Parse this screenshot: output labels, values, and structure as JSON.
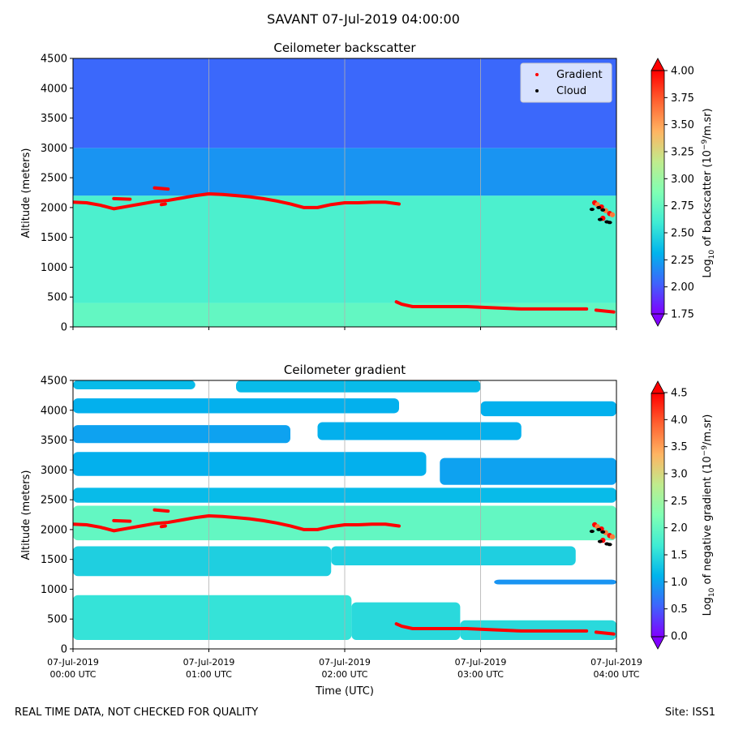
{
  "suptitle": "SAVANT 07-Jul-2019 04:00:00",
  "footer": {
    "quality_note": "REAL TIME DATA, NOT CHECKED FOR QUALITY",
    "site": "Site: ISS1"
  },
  "palette": {
    "rainbow": [
      "#8000ff",
      "#3f63fc",
      "#00b4ec",
      "#3fecd4",
      "#80ffb4",
      "#c0eb8d",
      "#ffb462",
      "#ff6231",
      "#ff0000"
    ],
    "gradient_marker": "#ff0000",
    "cloud_marker": "#000000"
  },
  "chart_data": [
    {
      "type": "heatmap",
      "title": "Ceilometer backscatter",
      "ylabel": "Altitude (meters)",
      "ylim": [
        0,
        4500
      ],
      "yticks": [
        "0",
        "500",
        "1000",
        "1500",
        "2000",
        "2500",
        "3000",
        "3500",
        "4000",
        "4500"
      ],
      "x_hours": [
        0,
        4
      ],
      "xticks_hours": [
        0,
        1,
        2,
        3,
        4
      ],
      "grid": "vertical",
      "legend": {
        "position": "top-right",
        "entries": [
          {
            "label": "Gradient",
            "color": "#ff0000"
          },
          {
            "label": "Cloud",
            "color": "#000000"
          }
        ]
      },
      "colorbar": {
        "label": "Log10 of backscatter (10^-9/m.sr)",
        "min": 1.75,
        "max": 4.0,
        "ticks": [
          "1.75",
          "2.00",
          "2.25",
          "2.50",
          "2.75",
          "3.00",
          "3.25",
          "3.50",
          "3.75",
          "4.00"
        ]
      },
      "field_layers": [
        {
          "from": 0,
          "to": 400,
          "value": 2.75
        },
        {
          "from": 400,
          "to": 2200,
          "value": 2.65
        },
        {
          "from": 2200,
          "to": 3000,
          "value": 2.2
        },
        {
          "from": 3000,
          "to": 4500,
          "value": 2.05
        }
      ]
    },
    {
      "type": "heatmap",
      "title": "Ceilometer gradient",
      "ylabel": "Altitude (meters)",
      "xlabel": "Time (UTC)",
      "ylim": [
        0,
        4500
      ],
      "yticks": [
        "0",
        "500",
        "1000",
        "1500",
        "2000",
        "2500",
        "3000",
        "3500",
        "4000",
        "4500"
      ],
      "x_hours": [
        0,
        4
      ],
      "xticks_hours": [
        0,
        1,
        2,
        3,
        4
      ],
      "xtick_labels": [
        {
          "date": "07-Jul-2019",
          "time": "00:00 UTC"
        },
        {
          "date": "07-Jul-2019",
          "time": "01:00 UTC"
        },
        {
          "date": "07-Jul-2019",
          "time": "02:00 UTC"
        },
        {
          "date": "07-Jul-2019",
          "time": "03:00 UTC"
        },
        {
          "date": "07-Jul-2019",
          "time": "04:00 UTC"
        }
      ],
      "grid": "vertical",
      "colorbar": {
        "label": "Log10 of negative gradient (10^-9/m.sr)",
        "min": 0.0,
        "max": 4.5,
        "ticks": [
          "0.0",
          "0.5",
          "1.0",
          "1.5",
          "2.0",
          "2.5",
          "3.0",
          "3.5",
          "4.0",
          "4.5"
        ]
      },
      "bands": [
        {
          "h0": 0,
          "h1": 2.05,
          "bottom": 150,
          "top": 900,
          "value": 1.6
        },
        {
          "h0": 2.05,
          "h1": 2.85,
          "bottom": 150,
          "top": 780,
          "value": 1.5
        },
        {
          "h0": 2.85,
          "h1": 4,
          "bottom": 150,
          "top": 480,
          "value": 1.5
        },
        {
          "h0": 0,
          "h1": 1.9,
          "bottom": 1220,
          "top": 1720,
          "value": 1.4
        },
        {
          "h0": 1.9,
          "h1": 3.7,
          "bottom": 1400,
          "top": 1720,
          "value": 1.4
        },
        {
          "h0": 3.1,
          "h1": 4,
          "bottom": 1080,
          "top": 1160,
          "value": 0.9
        },
        {
          "h0": 0,
          "h1": 4,
          "bottom": 1820,
          "top": 2400,
          "value": 2.0
        },
        {
          "h0": 0,
          "h1": 4,
          "bottom": 2450,
          "top": 2700,
          "value": 1.2
        },
        {
          "h0": 0,
          "h1": 2.6,
          "bottom": 2900,
          "top": 3300,
          "value": 1.1
        },
        {
          "h0": 2.7,
          "h1": 4,
          "bottom": 2750,
          "top": 3200,
          "value": 1.0
        },
        {
          "h0": 0,
          "h1": 1.6,
          "bottom": 3450,
          "top": 3750,
          "value": 1.0
        },
        {
          "h0": 1.8,
          "h1": 3.3,
          "bottom": 3500,
          "top": 3800,
          "value": 1.1
        },
        {
          "h0": 0,
          "h1": 2.4,
          "bottom": 3950,
          "top": 4200,
          "value": 1.1
        },
        {
          "h0": 3.0,
          "h1": 4,
          "bottom": 3900,
          "top": 4150,
          "value": 1.1
        },
        {
          "h0": 0.0,
          "h1": 0.9,
          "bottom": 4350,
          "top": 4500,
          "value": 1.2
        },
        {
          "h0": 1.2,
          "h1": 3.0,
          "bottom": 4300,
          "top": 4500,
          "value": 1.2
        }
      ]
    }
  ],
  "overlay_series": {
    "gradient_top": [
      [
        0.0,
        2090
      ],
      [
        0.1,
        2080
      ],
      [
        0.2,
        2040
      ],
      [
        0.3,
        1980
      ],
      [
        0.4,
        2020
      ],
      [
        0.5,
        2060
      ],
      [
        0.6,
        2100
      ],
      [
        0.7,
        2120
      ],
      [
        0.8,
        2160
      ],
      [
        0.9,
        2200
      ],
      [
        1.0,
        2230
      ],
      [
        1.1,
        2220
      ],
      [
        1.2,
        2200
      ],
      [
        1.3,
        2180
      ],
      [
        1.4,
        2150
      ],
      [
        1.5,
        2110
      ],
      [
        1.6,
        2060
      ],
      [
        1.7,
        2000
      ],
      [
        1.8,
        2000
      ],
      [
        1.9,
        2050
      ],
      [
        2.0,
        2080
      ],
      [
        2.1,
        2080
      ],
      [
        2.2,
        2090
      ],
      [
        2.3,
        2090
      ],
      [
        2.4,
        2060
      ]
    ],
    "gradient_upper_segments": [
      [
        [
          0.3,
          2150
        ],
        [
          0.42,
          2140
        ]
      ],
      [
        [
          0.6,
          2330
        ],
        [
          0.7,
          2310
        ]
      ],
      [
        [
          0.65,
          2050
        ],
        [
          0.68,
          2060
        ]
      ]
    ],
    "gradient_low": [
      [
        2.38,
        420
      ],
      [
        2.42,
        380
      ],
      [
        2.5,
        340
      ],
      [
        2.7,
        340
      ],
      [
        2.9,
        340
      ],
      [
        3.1,
        320
      ],
      [
        3.3,
        300
      ],
      [
        3.5,
        300
      ],
      [
        3.6,
        300
      ],
      [
        3.78,
        300
      ]
    ],
    "gradient_low_tail": [
      [
        3.85,
        280
      ],
      [
        3.98,
        250
      ]
    ],
    "cloud_points": [
      [
        3.82,
        1970
      ],
      [
        3.87,
        2000
      ],
      [
        3.9,
        1960
      ],
      [
        3.88,
        1800
      ],
      [
        3.95,
        1750
      ],
      [
        3.93,
        1760
      ]
    ],
    "gradient_cluster": [
      [
        3.84,
        2080
      ],
      [
        3.86,
        2050
      ],
      [
        3.89,
        2010
      ],
      [
        3.92,
        1950
      ],
      [
        3.95,
        1900
      ],
      [
        3.97,
        1880
      ],
      [
        3.9,
        1820
      ]
    ]
  }
}
